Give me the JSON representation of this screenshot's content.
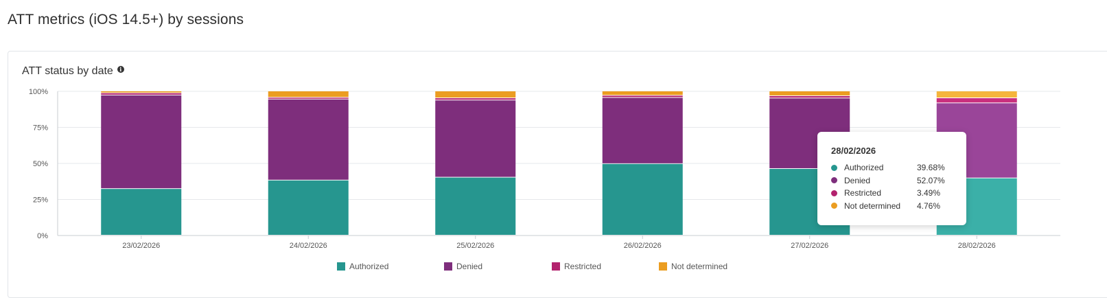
{
  "page": {
    "title": "ATT metrics (iOS 14.5+) by sessions"
  },
  "card": {
    "title": "ATT status by date",
    "info_icon": "info-icon"
  },
  "colors": {
    "Authorized": "#26968f",
    "Denied": "#7e2e7c",
    "Restricted": "#b3226e",
    "Not determined": "#eb9d21",
    "highlight": {
      "Authorized": "#3bb0a8",
      "Denied": "#9a4599",
      "Restricted": "#c9307e",
      "Not determined": "#f5b53c"
    }
  },
  "chart_data": {
    "type": "bar",
    "stacked": true,
    "categories": [
      "23/02/2026",
      "24/02/2026",
      "25/02/2026",
      "26/02/2026",
      "27/02/2026",
      "28/02/2026"
    ],
    "series": [
      {
        "name": "Authorized",
        "values": [
          32.3,
          38.2,
          40.2,
          49.6,
          46.2,
          39.68
        ]
      },
      {
        "name": "Denied",
        "values": [
          64.9,
          56.2,
          53.5,
          45.9,
          48.9,
          52.07
        ]
      },
      {
        "name": "Restricted",
        "values": [
          1.5,
          1.2,
          1.5,
          1.5,
          1.6,
          3.49
        ]
      },
      {
        "name": "Not determined",
        "values": [
          1.3,
          4.4,
          4.8,
          3.0,
          3.3,
          4.76
        ]
      }
    ],
    "y_ticks": [
      "0%",
      "25%",
      "50%",
      "75%",
      "100%"
    ],
    "ylim": [
      0,
      100
    ],
    "grid": true,
    "legend_position": "bottom",
    "highlighted_category": "28/02/2026"
  },
  "tooltip": {
    "date": "28/02/2026",
    "rows": [
      {
        "name": "Authorized",
        "value": "39.68%"
      },
      {
        "name": "Denied",
        "value": "52.07%"
      },
      {
        "name": "Restricted",
        "value": "3.49%"
      },
      {
        "name": "Not determined",
        "value": "4.76%"
      }
    ]
  }
}
